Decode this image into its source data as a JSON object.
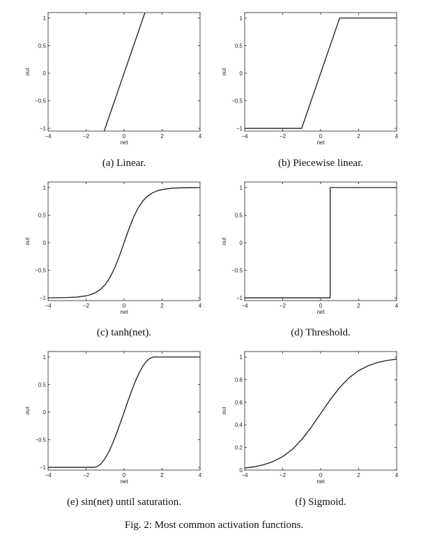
{
  "figure_caption": "Fig. 2: Most common activation functions.",
  "chart_data": [
    {
      "type": "line",
      "caption": "(a) Linear.",
      "xlabel": "net",
      "ylabel": "out",
      "xlim": [
        -4,
        4
      ],
      "ylim": [
        -1.05,
        1.1
      ],
      "xticks": [
        -4,
        -2,
        0,
        2,
        4
      ],
      "yticks": [
        -1,
        -0.5,
        0,
        0.5,
        1
      ],
      "ytick_labels": [
        "-1",
        "-0.5",
        "0",
        "0.5",
        "1"
      ],
      "grid": false,
      "series": [
        {
          "x": [
            -1.05,
            1.1
          ],
          "y": [
            -1.05,
            1.1
          ]
        }
      ]
    },
    {
      "type": "line",
      "caption": "(b) Piecewise linear.",
      "xlabel": "net",
      "ylabel": "out",
      "xlim": [
        -4,
        4
      ],
      "ylim": [
        -1.05,
        1.1
      ],
      "xticks": [
        -4,
        -2,
        0,
        2,
        4
      ],
      "yticks": [
        -1,
        -0.5,
        0,
        0.5,
        1
      ],
      "ytick_labels": [
        "-1",
        "-0.5",
        "0",
        "0.5",
        "1"
      ],
      "grid": false,
      "series": [
        {
          "x": [
            -4,
            -1,
            1,
            4
          ],
          "y": [
            -1,
            -1,
            1,
            1
          ]
        }
      ]
    },
    {
      "type": "line",
      "caption": "(c) tanh(net).",
      "xlabel": "net",
      "ylabel": "out",
      "xlim": [
        -4,
        4
      ],
      "ylim": [
        -1.05,
        1.1
      ],
      "xticks": [
        -4,
        -2,
        0,
        2,
        4
      ],
      "yticks": [
        -1,
        -0.5,
        0,
        0.5,
        1
      ],
      "ytick_labels": [
        "-1",
        "-0.5",
        "0",
        "0.5",
        "1"
      ],
      "grid": false,
      "series": [
        {
          "x": [
            -4,
            -3.5,
            -3,
            -2.5,
            -2,
            -1.75,
            -1.5,
            -1.25,
            -1,
            -0.75,
            -0.5,
            -0.25,
            0,
            0.25,
            0.5,
            0.75,
            1,
            1.25,
            1.5,
            1.75,
            2,
            2.5,
            3,
            3.5,
            4
          ],
          "y": [
            -0.999,
            -0.998,
            -0.995,
            -0.987,
            -0.964,
            -0.941,
            -0.905,
            -0.848,
            -0.762,
            -0.635,
            -0.462,
            -0.245,
            0,
            0.245,
            0.462,
            0.635,
            0.762,
            0.848,
            0.905,
            0.941,
            0.964,
            0.987,
            0.995,
            0.998,
            0.999
          ]
        }
      ]
    },
    {
      "type": "line",
      "caption": "(d) Threshold.",
      "xlabel": "net",
      "ylabel": "out",
      "xlim": [
        -4,
        4
      ],
      "ylim": [
        -1.05,
        1.1
      ],
      "xticks": [
        -4,
        -2,
        0,
        2,
        4
      ],
      "yticks": [
        -1,
        -0.5,
        0,
        0.5,
        1
      ],
      "ytick_labels": [
        "-1",
        "-0.5",
        "0",
        "0.5",
        "1"
      ],
      "grid": false,
      "series": [
        {
          "x": [
            -4,
            0.5,
            0.5,
            4
          ],
          "y": [
            -1,
            -1,
            1,
            1
          ]
        }
      ]
    },
    {
      "type": "line",
      "caption": "(e) sin(net) until saturation.",
      "xlabel": "net",
      "ylabel": "out",
      "xlim": [
        -4,
        4
      ],
      "ylim": [
        -1.05,
        1.1
      ],
      "xticks": [
        -4,
        -2,
        0,
        2,
        4
      ],
      "yticks": [
        -1,
        -0.5,
        0,
        0.5,
        1
      ],
      "ytick_labels": [
        "-1",
        "-0.5",
        "0",
        "0.5",
        "1"
      ],
      "grid": false,
      "series": [
        {
          "x": [
            -4,
            -1.5708,
            -1.4,
            -1.2,
            -1,
            -0.8,
            -0.6,
            -0.4,
            -0.2,
            0,
            0.2,
            0.4,
            0.6,
            0.8,
            1,
            1.2,
            1.4,
            1.5708,
            4
          ],
          "y": [
            -1,
            -1,
            -0.985,
            -0.932,
            -0.841,
            -0.717,
            -0.565,
            -0.389,
            -0.199,
            0,
            0.199,
            0.389,
            0.565,
            0.717,
            0.841,
            0.932,
            0.985,
            1,
            1
          ]
        }
      ]
    },
    {
      "type": "line",
      "caption": "(f) Sigmoid.",
      "xlabel": "net",
      "ylabel": "out",
      "xlim": [
        -4,
        4
      ],
      "ylim": [
        0,
        1.05
      ],
      "xticks": [
        -4,
        -2,
        0,
        2,
        4
      ],
      "yticks": [
        0,
        0.2,
        0.4,
        0.6,
        0.8,
        1
      ],
      "ytick_labels": [
        "0",
        "0.2",
        "0.4",
        "0.6",
        "0.8",
        "1"
      ],
      "grid": false,
      "series": [
        {
          "x": [
            -4,
            -3.5,
            -3,
            -2.5,
            -2,
            -1.5,
            -1,
            -0.5,
            0,
            0.5,
            1,
            1.5,
            2,
            2.5,
            3,
            3.5,
            4
          ],
          "y": [
            0.018,
            0.029,
            0.047,
            0.076,
            0.119,
            0.182,
            0.269,
            0.378,
            0.5,
            0.622,
            0.731,
            0.818,
            0.881,
            0.924,
            0.953,
            0.971,
            0.982
          ]
        }
      ]
    }
  ]
}
